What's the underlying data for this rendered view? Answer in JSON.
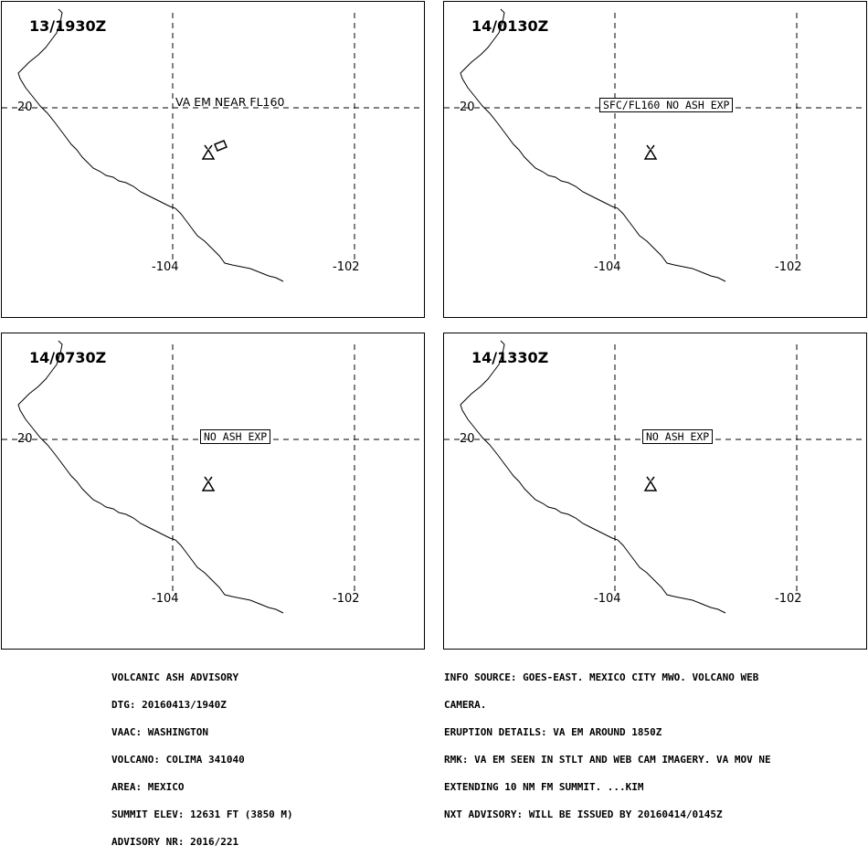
{
  "panels": [
    {
      "time": "13/1930Z",
      "lat_label": "20",
      "lon_labels": [
        "-104",
        "-102"
      ],
      "annotation": "VA EM NEAR FL160",
      "annotation_style": "plain",
      "ash_polygon": true
    },
    {
      "time": "14/0130Z",
      "lat_label": "20",
      "lon_labels": [
        "-104",
        "-102"
      ],
      "annotation": "SFC/FL160 NO ASH EXP",
      "annotation_style": "box",
      "ash_polygon": false
    },
    {
      "time": "14/0730Z",
      "lat_label": "20",
      "lon_labels": [
        "-104",
        "-102"
      ],
      "annotation": "NO ASH EXP",
      "annotation_style": "box",
      "ash_polygon": false
    },
    {
      "time": "14/1330Z",
      "lat_label": "20",
      "lon_labels": [
        "-104",
        "-102"
      ],
      "annotation": "NO ASH EXP",
      "annotation_style": "box",
      "ash_polygon": false
    }
  ],
  "icons": {
    "volcano": "volcano-icon",
    "ash_area": "ash-polygon-icon"
  },
  "colors": {
    "lines": "#000000",
    "background": "#ffffff"
  },
  "advisory_left": [
    "VOLCANIC ASH ADVISORY",
    "DTG: 20160413/1940Z",
    "VAAC: WASHINGTON",
    "VOLCANO: COLIMA 341040",
    "AREA: MEXICO",
    "SUMMIT ELEV: 12631 FT (3850 M)",
    "ADVISORY NR: 2016/221"
  ],
  "advisory_right": [
    "INFO SOURCE: GOES-EAST. MEXICO CITY MWO. VOLCANO WEB",
    "CAMERA.",
    "ERUPTION DETAILS: VA EM AROUND 1850Z",
    "RMK: VA EM SEEN IN STLT AND WEB CAM IMAGERY. VA MOV NE",
    "EXTENDING 10 NM FM SUMMIT. ...KIM",
    "NXT ADVISORY: WILL BE ISSUED BY 20160414/0145Z"
  ]
}
